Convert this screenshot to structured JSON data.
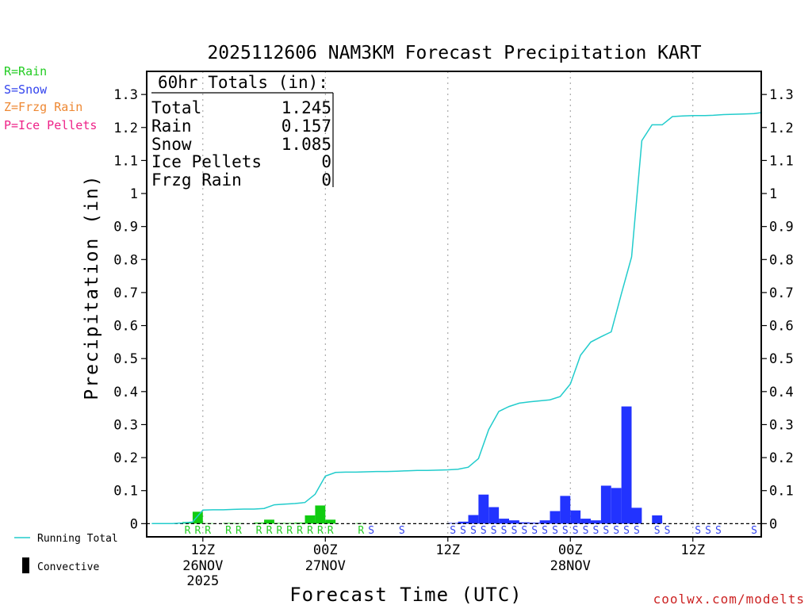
{
  "chart_data": {
    "type": "bar+line",
    "title": "2025112606 NAM3KM Forecast Precipitation KART",
    "ylabel": "Precipitation (in)",
    "xlabel": "Forecast Time (UTC)",
    "ylim": [
      -0.04,
      1.37
    ],
    "yticks": [
      0,
      0.1,
      0.2,
      0.3,
      0.4,
      0.5,
      0.6,
      0.7,
      0.8,
      0.9,
      1,
      1.1,
      1.2,
      1.3
    ],
    "ytick_labels": [
      "0",
      "0.1",
      "0.2",
      "0.3",
      "0.4",
      "0.5",
      "0.6",
      "0.7",
      "0.8",
      "0.9",
      "1",
      "1.1",
      "1.2",
      "1.3"
    ],
    "xlim_hours": [
      6.5,
      66.7
    ],
    "xticks": [
      {
        "hour": 12,
        "label": "12Z",
        "date": "26NOV",
        "year": "2025"
      },
      {
        "hour": 24,
        "label": "00Z",
        "date": "27NOV",
        "year": ""
      },
      {
        "hour": 36,
        "label": "12Z",
        "date": "",
        "year": ""
      },
      {
        "hour": 48,
        "label": "00Z",
        "date": "28NOV",
        "year": ""
      },
      {
        "hour": 60,
        "label": "12Z",
        "date": "",
        "year": ""
      }
    ],
    "totals_box": {
      "header": "60hr Totals (in):",
      "rows": [
        {
          "label": "Total",
          "value": "1.245"
        },
        {
          "label": "Rain",
          "value": "0.157"
        },
        {
          "label": "Snow",
          "value": "1.085"
        },
        {
          "label": "Ice Pellets",
          "value": "0"
        },
        {
          "label": "Frzg Rain",
          "value": "0"
        }
      ]
    },
    "precip_type_legend": [
      {
        "text": "R=Rain",
        "color": "#22cc22"
      },
      {
        "text": "S=Snow",
        "color": "#3344ee"
      },
      {
        "text": "Z=Frzg Rain",
        "color": "#ee8833"
      },
      {
        "text": "P=Ice Pellets",
        "color": "#ee2288"
      }
    ],
    "series_legend": [
      {
        "name": "Running Total",
        "color": "#22cccc",
        "kind": "line"
      },
      {
        "name": "Convective",
        "color": "#000000",
        "kind": "bar"
      }
    ],
    "colors": {
      "rain": "#11cc11",
      "snow": "#2233ff",
      "running_total": "#22cccc"
    },
    "bars": [
      {
        "hour": 10.5,
        "value": 0.005,
        "type": "rain"
      },
      {
        "hour": 11.5,
        "value": 0.036,
        "type": "rain"
      },
      {
        "hour": 12.5,
        "value": 0.001,
        "type": "rain"
      },
      {
        "hour": 14.5,
        "value": 0.002,
        "type": "rain"
      },
      {
        "hour": 15.5,
        "value": 0.001,
        "type": "rain"
      },
      {
        "hour": 17.5,
        "value": 0.003,
        "type": "rain"
      },
      {
        "hour": 18.5,
        "value": 0.012,
        "type": "rain"
      },
      {
        "hour": 19.5,
        "value": 0.002,
        "type": "rain"
      },
      {
        "hour": 20.5,
        "value": 0.002,
        "type": "rain"
      },
      {
        "hour": 21.5,
        "value": 0.003,
        "type": "rain"
      },
      {
        "hour": 22.5,
        "value": 0.025,
        "type": "rain"
      },
      {
        "hour": 23.5,
        "value": 0.055,
        "type": "rain"
      },
      {
        "hour": 24.5,
        "value": 0.012,
        "type": "rain"
      },
      {
        "hour": 27.5,
        "value": 0.001,
        "type": "rain"
      },
      {
        "hour": 36.5,
        "value": 0.002,
        "type": "snow"
      },
      {
        "hour": 37.5,
        "value": 0.006,
        "type": "snow"
      },
      {
        "hour": 38.5,
        "value": 0.026,
        "type": "snow"
      },
      {
        "hour": 39.5,
        "value": 0.088,
        "type": "snow"
      },
      {
        "hour": 40.5,
        "value": 0.05,
        "type": "snow"
      },
      {
        "hour": 41.5,
        "value": 0.015,
        "type": "snow"
      },
      {
        "hour": 42.5,
        "value": 0.01,
        "type": "snow"
      },
      {
        "hour": 43.5,
        "value": 0.004,
        "type": "snow"
      },
      {
        "hour": 44.5,
        "value": 0.003,
        "type": "snow"
      },
      {
        "hour": 45.5,
        "value": 0.01,
        "type": "snow"
      },
      {
        "hour": 46.5,
        "value": 0.038,
        "type": "snow"
      },
      {
        "hour": 47.5,
        "value": 0.084,
        "type": "snow"
      },
      {
        "hour": 48.5,
        "value": 0.04,
        "type": "snow"
      },
      {
        "hour": 49.5,
        "value": 0.015,
        "type": "snow"
      },
      {
        "hour": 50.5,
        "value": 0.01,
        "type": "snow"
      },
      {
        "hour": 51.5,
        "value": 0.115,
        "type": "snow"
      },
      {
        "hour": 52.5,
        "value": 0.108,
        "type": "snow"
      },
      {
        "hour": 53.5,
        "value": 0.355,
        "type": "snow"
      },
      {
        "hour": 54.5,
        "value": 0.048,
        "type": "snow"
      },
      {
        "hour": 56.5,
        "value": 0.025,
        "type": "snow"
      }
    ],
    "running_total": {
      "hours": [
        7,
        8,
        9,
        10,
        11,
        12,
        13,
        14,
        15,
        16,
        17,
        18,
        19,
        20,
        21,
        22,
        23,
        24,
        25,
        26,
        27,
        28,
        29,
        30,
        31,
        32,
        33,
        34,
        35,
        36,
        37,
        38,
        39,
        40,
        41,
        42,
        43,
        44,
        45,
        46,
        47,
        48,
        49,
        50,
        51,
        52,
        53,
        54,
        55,
        56,
        57,
        58,
        59,
        60,
        61,
        62,
        63,
        64,
        65,
        66,
        66.7
      ],
      "values": [
        0,
        0,
        0,
        0.002,
        0.005,
        0.041,
        0.042,
        0.042,
        0.043,
        0.044,
        0.044,
        0.046,
        0.057,
        0.059,
        0.061,
        0.064,
        0.089,
        0.144,
        0.155,
        0.156,
        0.156,
        0.157,
        0.158,
        0.158,
        0.159,
        0.16,
        0.161,
        0.161,
        0.162,
        0.163,
        0.165,
        0.171,
        0.197,
        0.285,
        0.34,
        0.355,
        0.365,
        0.369,
        0.372,
        0.375,
        0.385,
        0.423,
        0.51,
        0.55,
        0.566,
        0.581,
        0.696,
        0.808,
        1.16,
        1.208,
        1.208,
        1.233,
        1.235,
        1.236,
        1.236,
        1.237,
        1.239,
        1.24,
        1.241,
        1.242,
        1.245
      ]
    },
    "ptype_labels": [
      {
        "hour": 10.5,
        "text": "R",
        "type": "rain"
      },
      {
        "hour": 11.5,
        "text": "R",
        "type": "rain"
      },
      {
        "hour": 12.5,
        "text": "R",
        "type": "rain"
      },
      {
        "hour": 14.5,
        "text": "R",
        "type": "rain"
      },
      {
        "hour": 15.5,
        "text": "R",
        "type": "rain"
      },
      {
        "hour": 17.5,
        "text": "R",
        "type": "rain"
      },
      {
        "hour": 18.5,
        "text": "R",
        "type": "rain"
      },
      {
        "hour": 19.5,
        "text": "R",
        "type": "rain"
      },
      {
        "hour": 20.5,
        "text": "R",
        "type": "rain"
      },
      {
        "hour": 21.5,
        "text": "R",
        "type": "rain"
      },
      {
        "hour": 22.5,
        "text": "R",
        "type": "rain"
      },
      {
        "hour": 23.5,
        "text": "R",
        "type": "rain"
      },
      {
        "hour": 24.5,
        "text": "R",
        "type": "rain"
      },
      {
        "hour": 27.5,
        "text": "R",
        "type": "rain"
      },
      {
        "hour": 28.5,
        "text": "S",
        "type": "snow"
      },
      {
        "hour": 31.5,
        "text": "S",
        "type": "snow"
      },
      {
        "hour": 36.5,
        "text": "S",
        "type": "snow"
      },
      {
        "hour": 37.5,
        "text": "S",
        "type": "snow"
      },
      {
        "hour": 38.5,
        "text": "S",
        "type": "snow"
      },
      {
        "hour": 39.5,
        "text": "S",
        "type": "snow"
      },
      {
        "hour": 40.5,
        "text": "S",
        "type": "snow"
      },
      {
        "hour": 41.5,
        "text": "S",
        "type": "snow"
      },
      {
        "hour": 42.5,
        "text": "S",
        "type": "snow"
      },
      {
        "hour": 43.5,
        "text": "S",
        "type": "snow"
      },
      {
        "hour": 44.5,
        "text": "S",
        "type": "snow"
      },
      {
        "hour": 45.5,
        "text": "S",
        "type": "snow"
      },
      {
        "hour": 46.5,
        "text": "S",
        "type": "snow"
      },
      {
        "hour": 47.5,
        "text": "S",
        "type": "snow"
      },
      {
        "hour": 48.5,
        "text": "S",
        "type": "snow"
      },
      {
        "hour": 49.5,
        "text": "S",
        "type": "snow"
      },
      {
        "hour": 50.5,
        "text": "S",
        "type": "snow"
      },
      {
        "hour": 51.5,
        "text": "S",
        "type": "snow"
      },
      {
        "hour": 52.5,
        "text": "S",
        "type": "snow"
      },
      {
        "hour": 53.5,
        "text": "S",
        "type": "snow"
      },
      {
        "hour": 54.5,
        "text": "S",
        "type": "snow"
      },
      {
        "hour": 56.5,
        "text": "S",
        "type": "snow"
      },
      {
        "hour": 57.5,
        "text": "S",
        "type": "snow"
      },
      {
        "hour": 60.5,
        "text": "S",
        "type": "snow"
      },
      {
        "hour": 61.5,
        "text": "S",
        "type": "snow"
      },
      {
        "hour": 62.5,
        "text": "S",
        "type": "snow"
      },
      {
        "hour": 66.0,
        "text": "S",
        "type": "snow"
      }
    ],
    "credit": "coolwx.com/modelts"
  }
}
